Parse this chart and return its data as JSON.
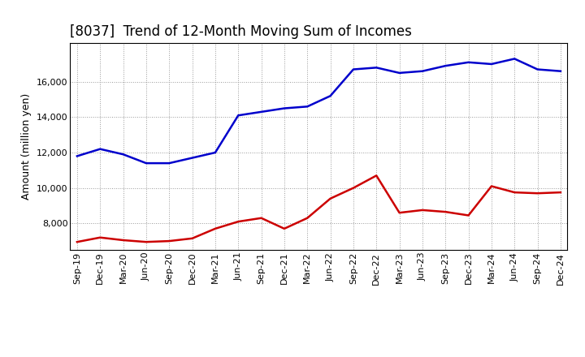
{
  "title": "[8037]  Trend of 12-Month Moving Sum of Incomes",
  "ylabel": "Amount (million yen)",
  "x_labels": [
    "Sep-19",
    "Dec-19",
    "Mar-20",
    "Jun-20",
    "Sep-20",
    "Dec-20",
    "Mar-21",
    "Jun-21",
    "Sep-21",
    "Dec-21",
    "Mar-22",
    "Jun-22",
    "Sep-22",
    "Dec-22",
    "Mar-23",
    "Jun-23",
    "Sep-23",
    "Dec-23",
    "Mar-24",
    "Jun-24",
    "Sep-24",
    "Dec-24"
  ],
  "ordinary_income": [
    11800,
    12200,
    11900,
    11400,
    11400,
    11700,
    12000,
    14100,
    14300,
    14500,
    14600,
    15200,
    16700,
    16800,
    16500,
    16600,
    16900,
    17100,
    17000,
    17300,
    16700,
    16600
  ],
  "net_income": [
    6950,
    7200,
    7050,
    6950,
    7000,
    7150,
    7700,
    8100,
    8300,
    7700,
    8300,
    9400,
    10000,
    10700,
    8600,
    8750,
    8650,
    8450,
    10100,
    9750,
    9700,
    9750
  ],
  "ordinary_income_color": "#0000CC",
  "net_income_color": "#CC0000",
  "background_color": "#FFFFFF",
  "grid_color": "#999999",
  "ylim_min": 6500,
  "ylim_max": 18200,
  "yticks": [
    8000,
    10000,
    12000,
    14000,
    16000
  ],
  "title_fontsize": 12,
  "axis_label_fontsize": 9,
  "tick_fontsize": 8,
  "line_width": 1.8
}
